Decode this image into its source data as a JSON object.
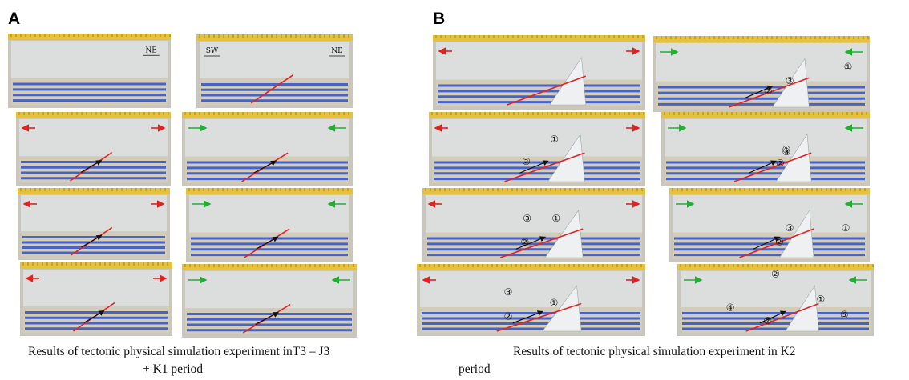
{
  "panels": [
    {
      "label": "A",
      "caption": [
        "Results of tectonic physical simulation experiment inT3 – J3",
        "+ K1 period"
      ],
      "photos": [
        [
          "NE"
        ],
        [
          "SW",
          "NE"
        ],
        [],
        [],
        [],
        [],
        [],
        []
      ]
    },
    {
      "label": "B",
      "caption": [
        "Results of tectonic physical simulation experiment in K2",
        "period"
      ],
      "photos": [
        [],
        [
          "①",
          "③",
          "②"
        ],
        [
          "①",
          "②"
        ],
        [
          "③",
          "①",
          "②"
        ],
        [
          "③",
          "①",
          "②"
        ],
        [
          "③",
          "①",
          "②"
        ],
        [
          "③",
          "①",
          "②"
        ],
        [
          "②",
          "④",
          "①",
          "②",
          "⑤"
        ]
      ]
    }
  ]
}
